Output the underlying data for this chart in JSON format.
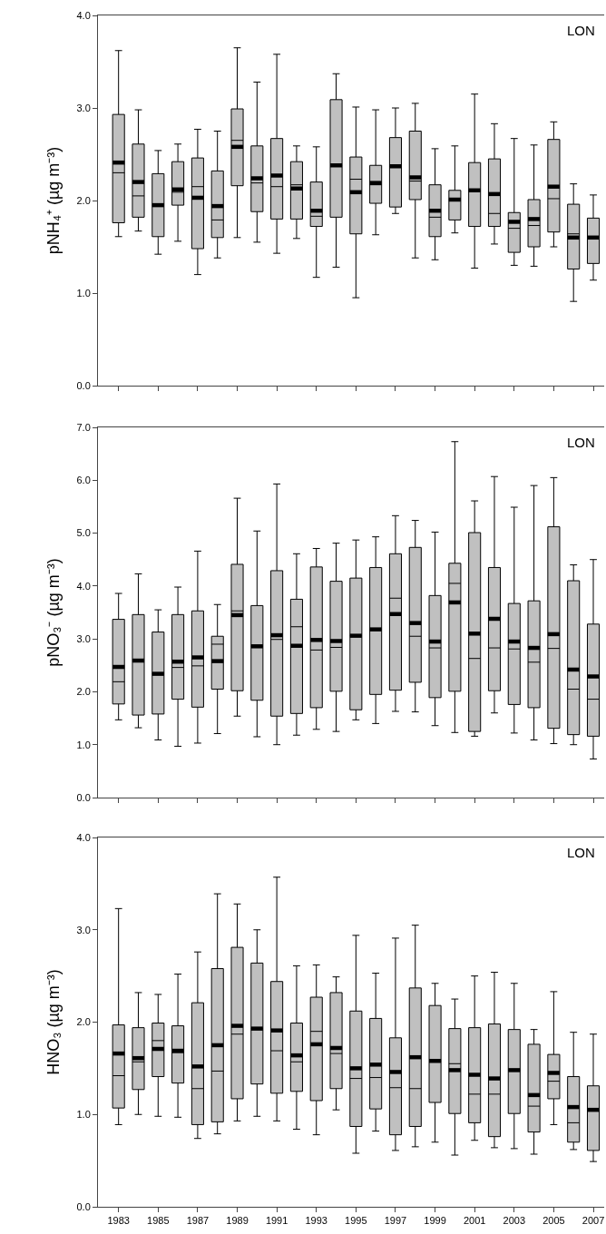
{
  "chart_data": [
    {
      "type": "box",
      "ylabel": "pNH₄⁺ (µg m⁻³)",
      "tick_labels": "y",
      "annotations": [
        "LON"
      ],
      "ylim": [
        0,
        4
      ],
      "yticks": [
        {
          "value": 0,
          "label": "0.0"
        },
        {
          "value": 1,
          "label": "1.0"
        },
        {
          "value": 2,
          "label": "2.0"
        },
        {
          "value": 3,
          "label": "3.0"
        },
        {
          "value": 4,
          "label": "4.0"
        }
      ],
      "categories": [
        "1983",
        null,
        "1985",
        null,
        "1987",
        null,
        "1989",
        null,
        "1991",
        null,
        "1993",
        null,
        "1995",
        null,
        "1997",
        null,
        "1999",
        null,
        "2001",
        null,
        "2003",
        null,
        "2005",
        null,
        "2007"
      ],
      "series": [
        {
          "color": "#c0c0c0",
          "boxes": [
            {
              "low": 1.61,
              "q1": 1.76,
              "median": 2.3,
              "q3": 2.93,
              "high": 3.62,
              "mean": 2.41
            },
            {
              "low": 1.67,
              "q1": 1.82,
              "median": 2.05,
              "q3": 2.61,
              "high": 2.98,
              "mean": 2.2
            },
            {
              "low": 1.42,
              "q1": 1.61,
              "median": 1.95,
              "q3": 2.29,
              "high": 2.54,
              "mean": 1.95
            },
            {
              "low": 1.56,
              "q1": 1.95,
              "median": 2.09,
              "q3": 2.42,
              "high": 2.61,
              "mean": 2.12
            },
            {
              "low": 1.2,
              "q1": 1.48,
              "median": 2.15,
              "q3": 2.46,
              "high": 2.77,
              "mean": 2.03
            },
            {
              "low": 1.38,
              "q1": 1.6,
              "median": 1.79,
              "q3": 2.32,
              "high": 2.75,
              "mean": 1.94
            },
            {
              "low": 1.6,
              "q1": 2.16,
              "median": 2.65,
              "q3": 2.99,
              "high": 3.65,
              "mean": 2.58
            },
            {
              "low": 1.55,
              "q1": 1.88,
              "median": 2.19,
              "q3": 2.59,
              "high": 3.28,
              "mean": 2.24
            },
            {
              "low": 1.43,
              "q1": 1.8,
              "median": 2.15,
              "q3": 2.67,
              "high": 3.58,
              "mean": 2.27
            },
            {
              "low": 1.59,
              "q1": 1.8,
              "median": 2.17,
              "q3": 2.42,
              "high": 2.59,
              "mean": 2.13
            },
            {
              "low": 1.17,
              "q1": 1.72,
              "median": 1.83,
              "q3": 2.2,
              "high": 2.58,
              "mean": 1.89
            },
            {
              "low": 1.28,
              "q1": 1.82,
              "median": 2.38,
              "q3": 3.09,
              "high": 3.37,
              "mean": 2.38
            },
            {
              "low": 0.95,
              "q1": 1.64,
              "median": 2.23,
              "q3": 2.47,
              "high": 3.01,
              "mean": 2.09
            },
            {
              "low": 1.63,
              "q1": 1.97,
              "median": 2.17,
              "q3": 2.38,
              "high": 2.98,
              "mean": 2.19
            },
            {
              "low": 1.86,
              "q1": 1.93,
              "median": 2.37,
              "q3": 2.68,
              "high": 3.0,
              "mean": 2.37
            },
            {
              "low": 1.38,
              "q1": 2.01,
              "median": 2.21,
              "q3": 2.75,
              "high": 3.05,
              "mean": 2.25
            },
            {
              "low": 1.36,
              "q1": 1.61,
              "median": 1.82,
              "q3": 2.17,
              "high": 2.56,
              "mean": 1.89
            },
            {
              "low": 1.65,
              "q1": 1.79,
              "median": 2.01,
              "q3": 2.11,
              "high": 2.59,
              "mean": 2.01
            },
            {
              "low": 1.27,
              "q1": 1.72,
              "median": 2.11,
              "q3": 2.41,
              "high": 3.15,
              "mean": 2.11
            },
            {
              "low": 1.53,
              "q1": 1.72,
              "median": 1.86,
              "q3": 2.45,
              "high": 2.83,
              "mean": 2.07
            },
            {
              "low": 1.3,
              "q1": 1.44,
              "median": 1.7,
              "q3": 1.87,
              "high": 2.67,
              "mean": 1.77
            },
            {
              "low": 1.29,
              "q1": 1.5,
              "median": 1.73,
              "q3": 2.01,
              "high": 2.6,
              "mean": 1.8
            },
            {
              "low": 1.5,
              "q1": 1.66,
              "median": 2.02,
              "q3": 2.66,
              "high": 2.85,
              "mean": 2.15
            },
            {
              "low": 0.91,
              "q1": 1.26,
              "median": 1.64,
              "q3": 1.96,
              "high": 2.18,
              "mean": 1.6
            },
            {
              "low": 1.14,
              "q1": 1.32,
              "median": 1.6,
              "q3": 1.81,
              "high": 2.06,
              "mean": 1.6
            }
          ]
        }
      ]
    },
    {
      "type": "box",
      "ylabel": "pNO₃⁻ (µg m⁻³)",
      "tick_labels": "y",
      "annotations": [
        "LON"
      ],
      "ylim": [
        0,
        7
      ],
      "yticks": [
        {
          "value": 0,
          "label": "0.0"
        },
        {
          "value": 1,
          "label": "1.0"
        },
        {
          "value": 2,
          "label": "2.0"
        },
        {
          "value": 3,
          "label": "3.0"
        },
        {
          "value": 4,
          "label": "4.0"
        },
        {
          "value": 5,
          "label": "5.0"
        },
        {
          "value": 6,
          "label": "6.0"
        },
        {
          "value": 7,
          "label": "7.0"
        }
      ],
      "categories": [
        "1983",
        null,
        "1985",
        null,
        "1987",
        null,
        "1989",
        null,
        "1991",
        null,
        "1993",
        null,
        "1995",
        null,
        "1997",
        null,
        "1999",
        null,
        "2001",
        null,
        "2003",
        null,
        "2005",
        null,
        "2007"
      ],
      "series": [
        {
          "color": "#c0c0c0",
          "boxes": [
            {
              "low": 1.47,
              "q1": 1.77,
              "median": 2.19,
              "q3": 3.37,
              "high": 3.86,
              "mean": 2.47
            },
            {
              "low": 1.32,
              "q1": 1.56,
              "median": 2.59,
              "q3": 3.46,
              "high": 4.23,
              "mean": 2.59
            },
            {
              "low": 1.09,
              "q1": 1.58,
              "median": 2.34,
              "q3": 3.13,
              "high": 3.55,
              "mean": 2.34
            },
            {
              "low": 0.97,
              "q1": 1.86,
              "median": 2.46,
              "q3": 3.46,
              "high": 3.98,
              "mean": 2.57
            },
            {
              "low": 1.03,
              "q1": 1.71,
              "median": 2.49,
              "q3": 3.53,
              "high": 4.66,
              "mean": 2.65
            },
            {
              "low": 1.21,
              "q1": 2.05,
              "median": 2.9,
              "q3": 3.05,
              "high": 3.65,
              "mean": 2.58
            },
            {
              "low": 1.54,
              "q1": 2.02,
              "median": 3.53,
              "q3": 4.41,
              "high": 5.66,
              "mean": 3.45
            },
            {
              "low": 1.15,
              "q1": 1.84,
              "median": 2.86,
              "q3": 3.63,
              "high": 5.04,
              "mean": 2.86
            },
            {
              "low": 1.0,
              "q1": 1.54,
              "median": 2.99,
              "q3": 4.29,
              "high": 5.93,
              "mean": 3.07
            },
            {
              "low": 1.18,
              "q1": 1.59,
              "median": 3.23,
              "q3": 3.75,
              "high": 4.61,
              "mean": 2.87
            },
            {
              "low": 1.29,
              "q1": 1.7,
              "median": 2.79,
              "q3": 4.36,
              "high": 4.71,
              "mean": 2.98
            },
            {
              "low": 1.25,
              "q1": 2.01,
              "median": 2.84,
              "q3": 4.09,
              "high": 4.81,
              "mean": 2.96
            },
            {
              "low": 1.47,
              "q1": 1.66,
              "median": 3.06,
              "q3": 4.15,
              "high": 4.87,
              "mean": 3.06
            },
            {
              "low": 1.4,
              "q1": 1.95,
              "median": 3.18,
              "q3": 4.35,
              "high": 4.93,
              "mean": 3.18
            },
            {
              "low": 1.63,
              "q1": 2.03,
              "median": 3.77,
              "q3": 4.61,
              "high": 5.33,
              "mean": 3.47
            },
            {
              "low": 1.62,
              "q1": 2.18,
              "median": 3.05,
              "q3": 4.73,
              "high": 5.24,
              "mean": 3.3
            },
            {
              "low": 1.36,
              "q1": 1.89,
              "median": 2.83,
              "q3": 3.82,
              "high": 5.02,
              "mean": 2.95
            },
            {
              "low": 1.23,
              "q1": 2.01,
              "median": 4.05,
              "q3": 4.43,
              "high": 6.73,
              "mean": 3.69
            },
            {
              "low": 1.16,
              "q1": 1.25,
              "median": 2.63,
              "q3": 5.01,
              "high": 5.61,
              "mean": 3.1
            },
            {
              "low": 1.6,
              "q1": 2.02,
              "median": 2.83,
              "q3": 4.35,
              "high": 6.07,
              "mean": 3.38
            },
            {
              "low": 1.22,
              "q1": 1.76,
              "median": 2.81,
              "q3": 3.67,
              "high": 5.49,
              "mean": 2.95
            },
            {
              "low": 1.09,
              "q1": 1.7,
              "median": 2.56,
              "q3": 3.72,
              "high": 5.9,
              "mean": 2.83
            },
            {
              "low": 1.02,
              "q1": 1.31,
              "median": 2.82,
              "q3": 5.12,
              "high": 6.05,
              "mean": 3.09
            },
            {
              "low": 1.0,
              "q1": 1.19,
              "median": 2.05,
              "q3": 4.1,
              "high": 4.4,
              "mean": 2.42
            },
            {
              "low": 0.73,
              "q1": 1.16,
              "median": 1.86,
              "q3": 3.28,
              "high": 4.5,
              "mean": 2.29
            }
          ]
        }
      ]
    },
    {
      "type": "box",
      "ylabel": "HNO₃ (µg m⁻³)",
      "annotations": [
        "LON"
      ],
      "ylim": [
        0,
        4
      ],
      "yticks": [
        {
          "value": 0,
          "label": "0.0"
        },
        {
          "value": 1,
          "label": "1.0"
        },
        {
          "value": 2,
          "label": "2.0"
        },
        {
          "value": 3,
          "label": "3.0"
        },
        {
          "value": 4,
          "label": "4.0"
        }
      ],
      "categories": [
        "1983",
        null,
        "1985",
        null,
        "1987",
        null,
        "1989",
        null,
        "1991",
        null,
        "1993",
        null,
        "1995",
        null,
        "1997",
        null,
        "1999",
        null,
        "2001",
        null,
        "2003",
        null,
        "2005",
        null,
        "2007"
      ],
      "series": [
        {
          "color": "#c0c0c0",
          "boxes": [
            {
              "low": 0.89,
              "q1": 1.07,
              "median": 1.42,
              "q3": 1.97,
              "high": 3.23,
              "mean": 1.66
            },
            {
              "low": 1.0,
              "q1": 1.27,
              "median": 1.57,
              "q3": 1.94,
              "high": 2.32,
              "mean": 1.61
            },
            {
              "low": 0.98,
              "q1": 1.41,
              "median": 1.8,
              "q3": 1.99,
              "high": 2.3,
              "mean": 1.71
            },
            {
              "low": 0.97,
              "q1": 1.34,
              "median": 1.67,
              "q3": 1.96,
              "high": 2.52,
              "mean": 1.69
            },
            {
              "low": 0.74,
              "q1": 0.89,
              "median": 1.28,
              "q3": 2.21,
              "high": 2.76,
              "mean": 1.52
            },
            {
              "low": 0.79,
              "q1": 0.92,
              "median": 1.47,
              "q3": 2.58,
              "high": 3.39,
              "mean": 1.75
            },
            {
              "low": 0.93,
              "q1": 1.17,
              "median": 1.87,
              "q3": 2.81,
              "high": 3.28,
              "mean": 1.96
            },
            {
              "low": 0.98,
              "q1": 1.33,
              "median": 1.93,
              "q3": 2.64,
              "high": 3.0,
              "mean": 1.93
            },
            {
              "low": 0.93,
              "q1": 1.23,
              "median": 1.69,
              "q3": 2.44,
              "high": 3.57,
              "mean": 1.91
            },
            {
              "low": 0.84,
              "q1": 1.25,
              "median": 1.57,
              "q3": 1.99,
              "high": 2.61,
              "mean": 1.64
            },
            {
              "low": 0.78,
              "q1": 1.15,
              "median": 1.9,
              "q3": 2.27,
              "high": 2.62,
              "mean": 1.76
            },
            {
              "low": 1.05,
              "q1": 1.28,
              "median": 1.66,
              "q3": 2.32,
              "high": 2.49,
              "mean": 1.72
            },
            {
              "low": 0.58,
              "q1": 0.87,
              "median": 1.39,
              "q3": 2.12,
              "high": 2.94,
              "mean": 1.5
            },
            {
              "low": 0.82,
              "q1": 1.06,
              "median": 1.4,
              "q3": 2.04,
              "high": 2.53,
              "mean": 1.54
            },
            {
              "low": 0.61,
              "q1": 0.78,
              "median": 1.29,
              "q3": 1.83,
              "high": 2.91,
              "mean": 1.46
            },
            {
              "low": 0.65,
              "q1": 0.87,
              "median": 1.28,
              "q3": 2.37,
              "high": 3.05,
              "mean": 1.62
            },
            {
              "low": 0.7,
              "q1": 1.13,
              "median": 1.58,
              "q3": 2.18,
              "high": 2.42,
              "mean": 1.58
            },
            {
              "low": 0.56,
              "q1": 1.01,
              "median": 1.55,
              "q3": 1.93,
              "high": 2.25,
              "mean": 1.48
            },
            {
              "low": 0.72,
              "q1": 0.91,
              "median": 1.22,
              "q3": 1.94,
              "high": 2.5,
              "mean": 1.43
            },
            {
              "low": 0.64,
              "q1": 0.76,
              "median": 1.22,
              "q3": 1.98,
              "high": 2.54,
              "mean": 1.39
            },
            {
              "low": 0.63,
              "q1": 1.01,
              "median": 1.48,
              "q3": 1.92,
              "high": 2.42,
              "mean": 1.48
            },
            {
              "low": 0.57,
              "q1": 0.81,
              "median": 1.09,
              "q3": 1.76,
              "high": 1.92,
              "mean": 1.21
            },
            {
              "low": 0.89,
              "q1": 1.17,
              "median": 1.36,
              "q3": 1.65,
              "high": 2.33,
              "mean": 1.45
            },
            {
              "low": 0.62,
              "q1": 0.7,
              "median": 0.91,
              "q3": 1.41,
              "high": 1.89,
              "mean": 1.08
            },
            {
              "low": 0.49,
              "q1": 0.61,
              "median": 1.05,
              "q3": 1.31,
              "high": 1.87,
              "mean": 1.05
            }
          ]
        }
      ]
    }
  ]
}
